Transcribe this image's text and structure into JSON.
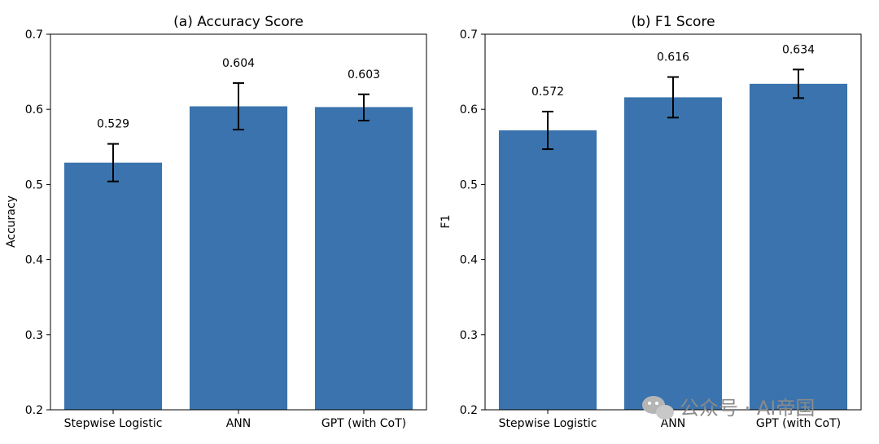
{
  "chart_data": [
    {
      "type": "bar",
      "title": "(a) Accuracy Score",
      "ylabel": "Accuracy",
      "xlabel": "",
      "categories": [
        "Stepwise Logistic",
        "ANN",
        "GPT (with CoT)"
      ],
      "values": [
        0.529,
        0.604,
        0.603
      ],
      "value_labels": [
        "0.529",
        "0.604",
        "0.603"
      ],
      "error": [
        {
          "low": 0.504,
          "high": 0.554
        },
        {
          "low": 0.573,
          "high": 0.635
        },
        {
          "low": 0.585,
          "high": 0.62
        }
      ],
      "ylim": [
        0.2,
        0.7
      ],
      "yticks": [
        {
          "value": 0.2,
          "label": "0.2"
        },
        {
          "value": 0.3,
          "label": "0.3"
        },
        {
          "value": 0.4,
          "label": "0.4"
        },
        {
          "value": 0.5,
          "label": "0.5"
        },
        {
          "value": 0.6,
          "label": "0.6"
        },
        {
          "value": 0.7,
          "label": "0.7"
        }
      ],
      "bar_color": "#3a73ad",
      "grid": false
    },
    {
      "type": "bar",
      "title": "(b) F1 Score",
      "ylabel": "F1",
      "xlabel": "",
      "categories": [
        "Stepwise Logistic",
        "ANN",
        "GPT (with CoT)"
      ],
      "values": [
        0.572,
        0.616,
        0.634
      ],
      "value_labels": [
        "0.572",
        "0.616",
        "0.634"
      ],
      "error": [
        {
          "low": 0.547,
          "high": 0.597
        },
        {
          "low": 0.589,
          "high": 0.643
        },
        {
          "low": 0.615,
          "high": 0.653
        }
      ],
      "ylim": [
        0.2,
        0.7
      ],
      "yticks": [
        {
          "value": 0.2,
          "label": "0.2"
        },
        {
          "value": 0.3,
          "label": "0.3"
        },
        {
          "value": 0.4,
          "label": "0.4"
        },
        {
          "value": 0.5,
          "label": "0.5"
        },
        {
          "value": 0.6,
          "label": "0.6"
        },
        {
          "value": 0.7,
          "label": "0.7"
        }
      ],
      "bar_color": "#3a73ad",
      "grid": false
    }
  ],
  "watermark": {
    "text": "公众号 · AI帝国",
    "icon": "wechat-icon",
    "color": "#8a8a8a"
  }
}
